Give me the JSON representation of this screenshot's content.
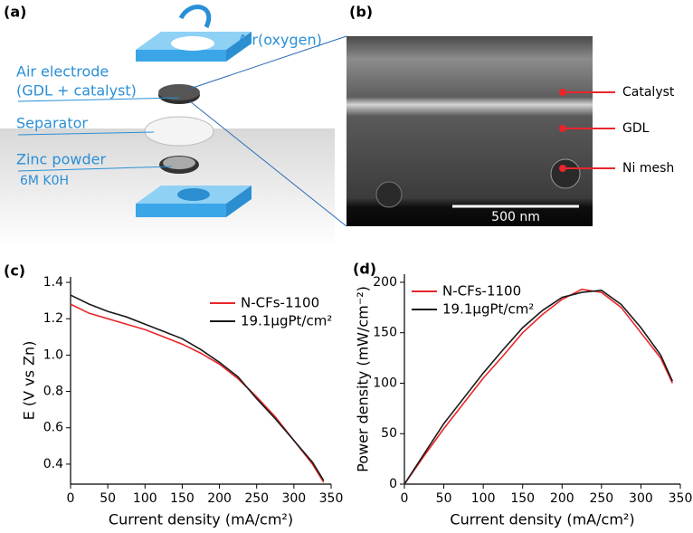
{
  "panel_a": {
    "label": "(a)",
    "air": "Air(oxygen)",
    "electrode": "Air electrode",
    "electrode_note": "(GDL + catalyst)",
    "separator": "Separator",
    "zinc": "Zinc powder",
    "electrolyte": "6M K0H"
  },
  "panel_b": {
    "label": "(b)",
    "catalyst": "Catalyst",
    "gdl": "GDL",
    "mesh": "Ni mesh",
    "scale": "500 nm"
  },
  "chart_data": [
    {
      "type": "line",
      "label": "(c)",
      "x_label": "Current density (mA/cm²)",
      "y_label": "E (V vs Zn)",
      "x": [
        0,
        25,
        50,
        75,
        100,
        125,
        150,
        175,
        200,
        225,
        250,
        275,
        300,
        325,
        340
      ],
      "series": [
        {
          "name": "N-CFs-1100",
          "color": "#e8262b",
          "values": [
            1.28,
            1.23,
            1.2,
            1.17,
            1.14,
            1.1,
            1.06,
            1.01,
            0.95,
            0.87,
            0.77,
            0.66,
            0.53,
            0.4,
            0.3
          ]
        },
        {
          "name": "19.1μgPt/cm²",
          "color": "#1a1a1a",
          "values": [
            1.33,
            1.28,
            1.24,
            1.21,
            1.17,
            1.13,
            1.09,
            1.03,
            0.96,
            0.88,
            0.76,
            0.65,
            0.53,
            0.41,
            0.31
          ]
        }
      ],
      "xlim": [
        0,
        350
      ],
      "ylim": [
        0.29,
        1.43
      ],
      "xticks": [
        0,
        50,
        100,
        150,
        200,
        250,
        300,
        350
      ],
      "yticks": [
        0.4,
        0.6,
        0.8,
        {
          "value": 1,
          "label": "1.0"
        },
        1.2,
        1.4
      ]
    },
    {
      "type": "line",
      "label": "(d)",
      "x_label": "Current density (mA/cm²)",
      "y_label": "Power density (mW/cm⁻²)",
      "x": [
        0,
        25,
        50,
        75,
        100,
        125,
        150,
        175,
        200,
        225,
        250,
        275,
        300,
        325,
        340
      ],
      "series": [
        {
          "name": "N-CFs-1100",
          "color": "#e8262b",
          "values": [
            0,
            28,
            55,
            80,
            105,
            127,
            150,
            168,
            183,
            193,
            190,
            175,
            150,
            125,
            100
          ]
        },
        {
          "name": "19.1μgPt/cm²",
          "color": "#1a1a1a",
          "values": [
            0,
            30,
            60,
            85,
            110,
            133,
            155,
            172,
            185,
            190,
            192,
            178,
            155,
            128,
            102
          ]
        }
      ],
      "xlim": [
        0,
        350
      ],
      "ylim": [
        0,
        208
      ],
      "xticks": [
        0,
        50,
        100,
        150,
        200,
        250,
        300,
        350
      ],
      "yticks": [
        0,
        50,
        100,
        150,
        200
      ]
    }
  ]
}
